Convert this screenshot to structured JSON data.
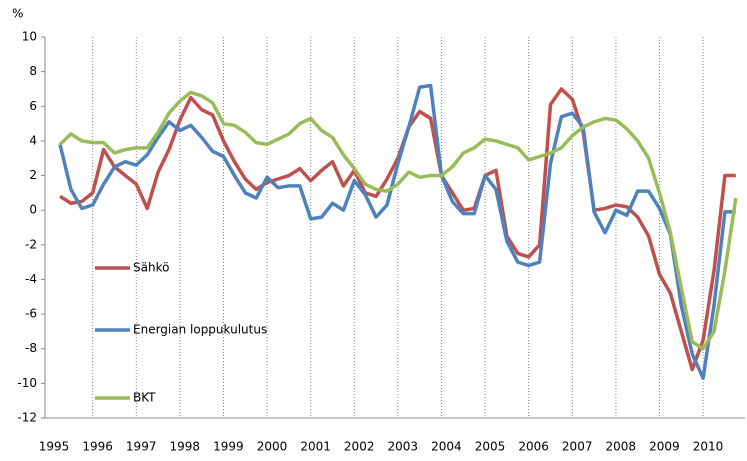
{
  "chart_data": {
    "type": "line",
    "ylabel": "%",
    "categories": [
      "1995",
      null,
      null,
      null,
      "1996",
      null,
      null,
      null,
      "1997",
      null,
      null,
      null,
      "1998",
      null,
      null,
      null,
      "1999",
      null,
      null,
      null,
      "2000",
      null,
      null,
      null,
      "2001",
      null,
      null,
      null,
      "2002",
      null,
      null,
      null,
      "2003",
      null,
      null,
      null,
      "2004",
      null,
      null,
      null,
      "2005",
      null,
      null,
      null,
      "2006",
      null,
      null,
      null,
      "2007",
      null,
      null,
      null,
      "2008",
      null,
      null,
      null,
      "2009",
      null,
      null,
      null,
      "2010",
      null,
      null
    ],
    "series": [
      {
        "name": "Sähkö",
        "color": "#c0504d",
        "values": [
          0.8,
          0.4,
          0.5,
          1.0,
          3.5,
          2.5,
          2.0,
          1.5,
          0.1,
          2.2,
          3.5,
          5.2,
          6.5,
          5.8,
          5.5,
          4.0,
          2.8,
          1.8,
          1.2,
          1.6,
          1.8,
          2.0,
          2.4,
          1.7,
          2.3,
          2.8,
          1.4,
          2.3,
          1.0,
          0.8,
          1.8,
          3.0,
          4.8,
          5.7,
          5.3,
          2.0,
          1.0,
          0.0,
          0.1,
          2.0,
          2.3,
          -1.5,
          -2.5,
          -2.7,
          -2.0,
          6.1,
          7.0,
          6.4,
          4.5,
          0.0,
          0.1,
          0.3,
          0.2,
          -0.4,
          -1.5,
          -3.7,
          -4.8,
          -7.0,
          -9.2,
          -7.5,
          -3.5,
          2.0,
          2.0
        ]
      },
      {
        "name": "Energian loppukulutus",
        "color": "#4f81bd",
        "values": [
          3.8,
          1.2,
          0.1,
          0.3,
          1.5,
          2.5,
          2.8,
          2.6,
          3.2,
          4.2,
          5.1,
          4.6,
          4.9,
          4.2,
          3.4,
          3.1,
          2.0,
          1.0,
          0.7,
          1.9,
          1.3,
          1.4,
          1.4,
          -0.5,
          -0.4,
          0.4,
          0.0,
          1.7,
          0.9,
          -0.4,
          0.3,
          2.7,
          4.8,
          7.1,
          7.2,
          2.0,
          0.5,
          -0.2,
          -0.2,
          2.0,
          1.2,
          -1.8,
          -3.0,
          -3.2,
          -3.0,
          2.7,
          5.4,
          5.6,
          4.8,
          -0.1,
          -1.3,
          0.0,
          -0.3,
          1.1,
          1.1,
          0.1,
          -1.4,
          -5.5,
          -8.3,
          -9.7,
          -5.5,
          -0.1,
          -0.1
        ]
      },
      {
        "name": "BKT",
        "color": "#9bbb59",
        "values": [
          3.8,
          4.4,
          4.0,
          3.9,
          3.9,
          3.3,
          3.5,
          3.6,
          3.6,
          4.5,
          5.6,
          6.3,
          6.8,
          6.6,
          6.2,
          5.0,
          4.9,
          4.5,
          3.9,
          3.8,
          4.1,
          4.4,
          5.0,
          5.3,
          4.6,
          4.2,
          3.2,
          2.4,
          1.5,
          1.2,
          1.1,
          1.5,
          2.2,
          1.9,
          2.0,
          2.0,
          2.5,
          3.3,
          3.6,
          4.1,
          4.0,
          3.8,
          3.6,
          2.9,
          3.1,
          3.3,
          3.6,
          4.3,
          4.8,
          5.1,
          5.3,
          5.2,
          4.7,
          4.0,
          3.0,
          1.0,
          -1.3,
          -4.5,
          -7.6,
          -8.0,
          -7.0,
          -3.5,
          0.7
        ]
      }
    ],
    "ylim": [
      -12,
      10
    ],
    "yticks": [
      -12,
      -10,
      -8,
      -6,
      -4,
      -2,
      0,
      2,
      4,
      6,
      8,
      10
    ],
    "grid": "x"
  }
}
